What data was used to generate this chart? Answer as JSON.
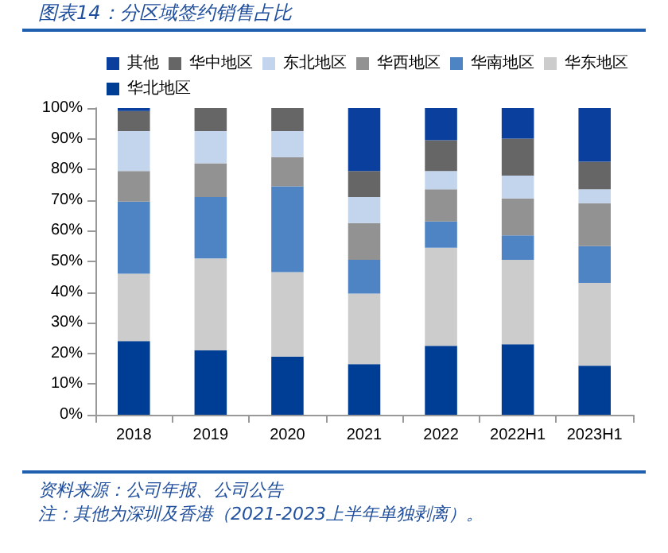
{
  "chart_data": {
    "type": "bar",
    "title": "图表14：分区域签约销售占比",
    "stacked": true,
    "categories": [
      "2018",
      "2019",
      "2020",
      "2021",
      "2022",
      "2022H1",
      "2023H1"
    ],
    "series": [
      {
        "name": "华北地区",
        "color": "#003e95",
        "values": [
          24,
          21,
          19,
          16.5,
          22.5,
          23,
          16
        ]
      },
      {
        "name": "华东地区",
        "color": "#cccccc",
        "values": [
          22,
          30,
          27.5,
          23,
          32,
          27.5,
          27
        ]
      },
      {
        "name": "华南地区",
        "color": "#4f84c4",
        "values": [
          23.5,
          20,
          28,
          11,
          8.5,
          8,
          12
        ]
      },
      {
        "name": "华西地区",
        "color": "#929292",
        "values": [
          10,
          11,
          9.5,
          12,
          10.5,
          12,
          14
        ]
      },
      {
        "name": "东北地区",
        "color": "#c3d5ed",
        "values": [
          13,
          10.5,
          8.5,
          8.5,
          6,
          7.5,
          4.5
        ]
      },
      {
        "name": "华中地区",
        "color": "#666666",
        "values": [
          6.5,
          7.5,
          7.5,
          8.5,
          10,
          12,
          9
        ]
      },
      {
        "name": "其他",
        "color": "#0a3f9e",
        "values": [
          1,
          0,
          0,
          20.5,
          10.5,
          10,
          17.5
        ]
      }
    ],
    "ylim": [
      0,
      100
    ],
    "yticks": [
      {
        "value": 0,
        "label": "0%"
      },
      {
        "value": 10,
        "label": "10%"
      },
      {
        "value": 20,
        "label": "20%"
      },
      {
        "value": 30,
        "label": "30%"
      },
      {
        "value": 40,
        "label": "40%"
      },
      {
        "value": 50,
        "label": "50%"
      },
      {
        "value": 60,
        "label": "60%"
      },
      {
        "value": 70,
        "label": "70%"
      },
      {
        "value": 80,
        "label": "80%"
      },
      {
        "value": 90,
        "label": "90%"
      },
      {
        "value": 100,
        "label": "100%"
      }
    ],
    "grid": false,
    "legend": "top",
    "annotations": [
      "资料来源：公司年报、公司公告",
      "注：其他为深圳及香港（2021-2023上半年单独剥离）。"
    ]
  }
}
